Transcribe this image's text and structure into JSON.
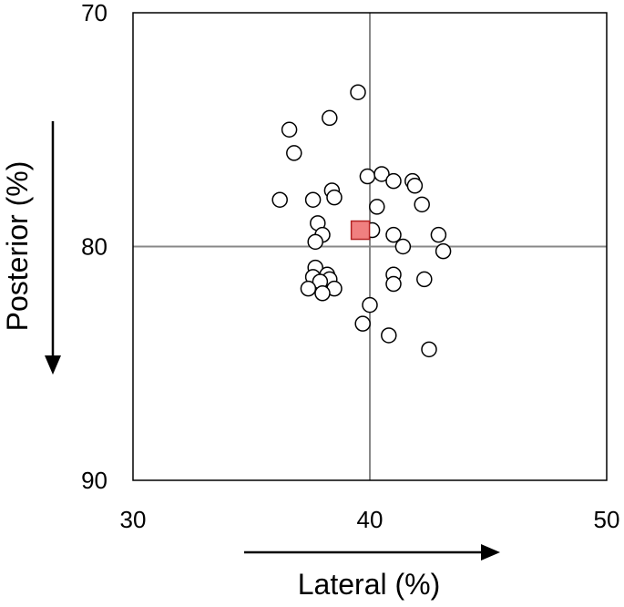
{
  "chart_data": {
    "type": "scatter",
    "title": "",
    "xlabel": "Lateral (%)",
    "ylabel": "Posterior (%)",
    "xlim": [
      30,
      50
    ],
    "ylim": [
      70,
      90
    ],
    "y_axis_inverted": true,
    "x_ticks": [
      "30",
      "40",
      "50"
    ],
    "y_ticks": [
      "70",
      "80",
      "90"
    ],
    "reference_lines": {
      "x": 40,
      "y": 80
    },
    "grid": false,
    "colors": {
      "points_fill": "#ffffff",
      "points_stroke": "#000000",
      "mean_fill": "#f08080",
      "mean_stroke": "#b22222",
      "reference_line": "#888888",
      "frame": "#000000"
    },
    "series": [
      {
        "marker": "circle",
        "points": [
          [
            39.5,
            73.4
          ],
          [
            38.3,
            74.5
          ],
          [
            36.6,
            75.0
          ],
          [
            36.8,
            76.0
          ],
          [
            39.9,
            77.0
          ],
          [
            40.5,
            76.9
          ],
          [
            41.0,
            77.2
          ],
          [
            41.8,
            77.2
          ],
          [
            41.9,
            77.4
          ],
          [
            38.4,
            77.6
          ],
          [
            38.5,
            77.9
          ],
          [
            36.2,
            78.0
          ],
          [
            37.6,
            78.0
          ],
          [
            40.3,
            78.3
          ],
          [
            42.2,
            78.2
          ],
          [
            37.8,
            79.0
          ],
          [
            38.0,
            79.5
          ],
          [
            37.7,
            79.8
          ],
          [
            40.1,
            79.3
          ],
          [
            41.0,
            79.5
          ],
          [
            41.4,
            80.0
          ],
          [
            42.9,
            79.5
          ],
          [
            43.1,
            80.2
          ],
          [
            37.7,
            80.9
          ],
          [
            37.6,
            81.3
          ],
          [
            38.2,
            81.2
          ],
          [
            38.3,
            81.4
          ],
          [
            37.9,
            81.5
          ],
          [
            37.4,
            81.8
          ],
          [
            38.5,
            81.8
          ],
          [
            38.0,
            82.0
          ],
          [
            41.0,
            81.2
          ],
          [
            41.0,
            81.6
          ],
          [
            42.3,
            81.4
          ],
          [
            40.0,
            82.5
          ],
          [
            39.7,
            83.3
          ],
          [
            40.8,
            83.8
          ],
          [
            42.5,
            84.4
          ]
        ]
      },
      {
        "marker": "square",
        "points": [
          [
            39.6,
            79.3
          ]
        ]
      }
    ]
  }
}
